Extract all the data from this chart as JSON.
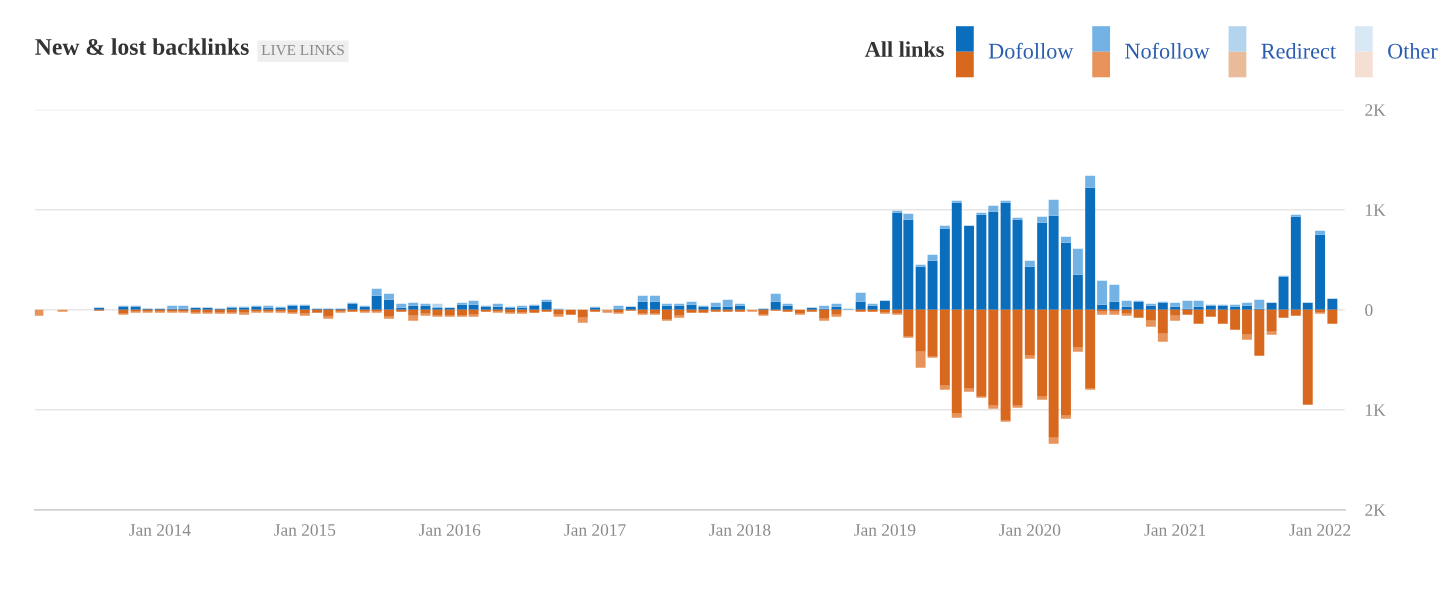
{
  "chart_data": {
    "type": "bar",
    "stacked": true,
    "title": "New & lost backlinks",
    "subtitle": "LIVE LINKS",
    "legend_title": "All links",
    "legend": "top right",
    "grid": "y",
    "x": [
      "2013-03",
      "2013-04",
      "2013-05",
      "2013-06",
      "2013-07",
      "2013-08",
      "2013-09",
      "2013-10",
      "2013-11",
      "2013-12",
      "2014-01",
      "2014-02",
      "2014-03",
      "2014-04",
      "2014-05",
      "2014-06",
      "2014-07",
      "2014-08",
      "2014-09",
      "2014-10",
      "2014-11",
      "2014-12",
      "2015-01",
      "2015-02",
      "2015-03",
      "2015-04",
      "2015-05",
      "2015-06",
      "2015-07",
      "2015-08",
      "2015-09",
      "2015-10",
      "2015-11",
      "2015-12",
      "2016-01",
      "2016-02",
      "2016-03",
      "2016-04",
      "2016-05",
      "2016-06",
      "2016-07",
      "2016-08",
      "2016-09",
      "2016-10",
      "2016-11",
      "2016-12",
      "2017-01",
      "2017-02",
      "2017-03",
      "2017-04",
      "2017-05",
      "2017-06",
      "2017-07",
      "2017-08",
      "2017-09",
      "2017-10",
      "2017-11",
      "2017-12",
      "2018-01",
      "2018-02",
      "2018-03",
      "2018-04",
      "2018-05",
      "2018-06",
      "2018-07",
      "2018-08",
      "2018-09",
      "2018-10",
      "2018-11",
      "2018-12",
      "2019-01",
      "2019-02",
      "2019-03",
      "2019-04",
      "2019-05",
      "2019-06",
      "2019-07",
      "2019-08",
      "2019-09",
      "2019-10",
      "2019-11",
      "2019-12",
      "2020-01",
      "2020-02",
      "2020-03",
      "2020-04",
      "2020-05",
      "2020-06",
      "2020-07",
      "2020-08",
      "2020-09",
      "2020-10",
      "2020-11",
      "2020-12",
      "2021-01",
      "2021-02",
      "2021-03",
      "2021-04",
      "2021-05",
      "2021-06",
      "2021-07",
      "2021-08",
      "2021-09",
      "2021-10",
      "2021-11",
      "2021-12",
      "2022-01",
      "2022-02"
    ],
    "xlim": [
      "2013-02-20",
      "2022-03-05"
    ],
    "xticks": [
      {
        "value": "2014-01",
        "label": "Jan 2014"
      },
      {
        "value": "2015-01",
        "label": "Jan 2015"
      },
      {
        "value": "2016-01",
        "label": "Jan 2016"
      },
      {
        "value": "2017-01",
        "label": "Jan 2017"
      },
      {
        "value": "2018-01",
        "label": "Jan 2018"
      },
      {
        "value": "2019-01",
        "label": "Jan 2019"
      },
      {
        "value": "2020-01",
        "label": "Jan 2020"
      },
      {
        "value": "2021-01",
        "label": "Jan 2021"
      },
      {
        "value": "2022-01",
        "label": "Jan 2022"
      }
    ],
    "ylim": [
      -2000,
      2000
    ],
    "yticks": [
      {
        "value": 2000,
        "label": "2K"
      },
      {
        "value": 1000,
        "label": "1K"
      },
      0,
      {
        "value": -1000,
        "label": "1K"
      },
      {
        "value": -2000,
        "label": "2K"
      }
    ],
    "series": [
      {
        "name": "Dofollow",
        "color": "#0a6ebd",
        "values": [
          null,
          null,
          null,
          null,
          null,
          20,
          null,
          30,
          30,
          10,
          10,
          10,
          10,
          20,
          20,
          10,
          20,
          20,
          30,
          20,
          20,
          40,
          40,
          10,
          10,
          10,
          60,
          30,
          140,
          100,
          20,
          40,
          40,
          20,
          20,
          50,
          50,
          30,
          30,
          20,
          20,
          40,
          80,
          null,
          null,
          null,
          20,
          null,
          10,
          30,
          80,
          80,
          40,
          40,
          50,
          30,
          30,
          30,
          40,
          null,
          10,
          80,
          40,
          null,
          20,
          10,
          30,
          null,
          80,
          40,
          90,
          970,
          900,
          430,
          490,
          810,
          1070,
          840,
          950,
          980,
          1070,
          900,
          430,
          870,
          940,
          670,
          350,
          1220,
          50,
          80,
          30,
          80,
          40,
          70,
          30,
          10,
          30,
          40,
          40,
          30,
          40,
          10,
          70,
          330,
          930,
          70,
          750,
          110
        ]
      },
      {
        "name": "Nofollow",
        "color": "#72b2e4",
        "values": [
          null,
          null,
          null,
          null,
          null,
          null,
          null,
          10,
          10,
          null,
          null,
          30,
          30,
          null,
          null,
          null,
          10,
          10,
          10,
          20,
          10,
          10,
          10,
          null,
          null,
          null,
          10,
          10,
          70,
          60,
          40,
          30,
          20,
          10,
          null,
          20,
          40,
          10,
          30,
          10,
          20,
          10,
          20,
          10,
          null,
          null,
          10,
          null,
          30,
          null,
          60,
          60,
          20,
          20,
          30,
          10,
          40,
          70,
          20,
          null,
          null,
          80,
          20,
          null,
          null,
          30,
          30,
          10,
          90,
          20,
          null,
          20,
          60,
          20,
          60,
          30,
          20,
          null,
          20,
          60,
          20,
          20,
          60,
          60,
          160,
          60,
          260,
          120,
          240,
          170,
          60,
          10,
          20,
          10,
          40,
          80,
          60,
          10,
          10,
          20,
          30,
          90,
          null,
          10,
          20,
          null,
          40,
          null
        ]
      },
      {
        "name": "Redirect",
        "color": "#b3d4ee",
        "values": [
          null,
          null,
          null,
          null,
          null,
          null,
          null,
          null,
          null,
          null,
          null,
          null,
          null,
          null,
          null,
          null,
          null,
          null,
          null,
          null,
          null,
          null,
          null,
          null,
          null,
          null,
          null,
          null,
          null,
          null,
          null,
          null,
          null,
          30,
          null,
          null,
          null,
          null,
          null,
          null,
          null,
          null,
          null,
          null,
          null,
          null,
          null,
          null,
          null,
          null,
          null,
          null,
          null,
          null,
          null,
          null,
          null,
          null,
          null,
          null,
          null,
          null,
          null,
          null,
          null,
          null,
          null,
          null,
          null,
          null,
          null,
          null,
          null,
          null,
          null,
          null,
          null,
          null,
          null,
          null,
          null,
          null,
          null,
          null,
          null,
          null,
          null,
          null,
          null,
          null,
          null,
          null,
          null,
          null,
          null,
          null,
          null,
          null,
          null,
          null,
          null,
          null,
          null,
          null,
          null,
          null,
          null,
          null
        ]
      },
      {
        "name": "Other",
        "color": "#d9e8f5",
        "values": [
          null,
          null,
          null,
          null,
          null,
          null,
          null,
          null,
          null,
          null,
          null,
          null,
          null,
          null,
          null,
          null,
          null,
          null,
          null,
          null,
          null,
          null,
          null,
          null,
          null,
          null,
          null,
          null,
          null,
          null,
          null,
          null,
          null,
          null,
          null,
          null,
          null,
          null,
          null,
          null,
          null,
          null,
          null,
          null,
          null,
          null,
          null,
          null,
          null,
          null,
          null,
          null,
          null,
          null,
          null,
          null,
          null,
          null,
          null,
          null,
          null,
          null,
          null,
          null,
          null,
          null,
          null,
          null,
          null,
          null,
          null,
          null,
          null,
          null,
          null,
          null,
          null,
          null,
          null,
          null,
          null,
          null,
          null,
          null,
          null,
          null,
          null,
          null,
          null,
          null,
          null,
          null,
          null,
          null,
          null,
          null,
          null,
          null,
          null,
          null,
          null,
          null,
          null,
          null,
          null,
          null,
          null,
          null
        ]
      },
      {
        "color": "#d9681f",
        "values": [
          null,
          null,
          null,
          null,
          null,
          -10,
          null,
          -40,
          -20,
          -20,
          -20,
          -20,
          -20,
          -30,
          -30,
          -30,
          -30,
          -30,
          -20,
          -20,
          -20,
          -30,
          -40,
          -30,
          -70,
          -20,
          -20,
          -20,
          -20,
          -70,
          -20,
          -60,
          -40,
          -60,
          -60,
          -60,
          -50,
          -20,
          -20,
          -30,
          -30,
          -30,
          -20,
          -50,
          -50,
          -80,
          -20,
          null,
          -30,
          -10,
          -40,
          -40,
          -100,
          -60,
          -30,
          -30,
          -20,
          -20,
          -20,
          null,
          -50,
          -10,
          -20,
          -40,
          -20,
          -90,
          -50,
          null,
          -20,
          -20,
          -30,
          -40,
          -270,
          -420,
          -470,
          -760,
          -1040,
          -790,
          -870,
          -960,
          -1110,
          -960,
          -460,
          -870,
          -1280,
          -1060,
          -380,
          -790,
          -20,
          -20,
          -40,
          -80,
          -110,
          -240,
          -60,
          -50,
          -140,
          -70,
          -140,
          -200,
          -250,
          -460,
          -220,
          -80,
          -60,
          -950,
          -30,
          -140
        ]
      },
      {
        "color": "#e8935a",
        "values": [
          -60,
          null,
          -20,
          null,
          null,
          null,
          null,
          -10,
          -10,
          -10,
          -10,
          -10,
          -10,
          -10,
          -10,
          -10,
          -10,
          -20,
          -10,
          -10,
          -10,
          -10,
          -20,
          null,
          -20,
          -10,
          null,
          -10,
          -10,
          -20,
          null,
          -50,
          -20,
          -10,
          -10,
          -10,
          -20,
          null,
          -10,
          -10,
          -10,
          null,
          null,
          -20,
          null,
          -50,
          null,
          -30,
          -10,
          null,
          -10,
          -10,
          -10,
          -20,
          null,
          null,
          null,
          null,
          null,
          -20,
          -10,
          null,
          null,
          -10,
          null,
          -20,
          -20,
          null,
          null,
          null,
          -10,
          -10,
          -10,
          -160,
          -10,
          -40,
          -40,
          -30,
          -10,
          -30,
          -10,
          -20,
          -30,
          -30,
          -60,
          -30,
          -40,
          -10,
          -30,
          -30,
          -20,
          null,
          -60,
          -80,
          -50,
          null,
          null,
          null,
          null,
          null,
          -50,
          null,
          -30,
          null,
          null,
          null,
          -10,
          null
        ]
      },
      {
        "color": "#e9bb9b",
        "values": [
          null,
          null,
          null,
          null,
          null,
          null,
          null,
          null,
          null,
          null,
          null,
          null,
          null,
          null,
          null,
          null,
          null,
          null,
          null,
          null,
          null,
          null,
          null,
          null,
          null,
          null,
          null,
          null,
          null,
          null,
          null,
          null,
          null,
          null,
          null,
          null,
          null,
          null,
          null,
          null,
          null,
          null,
          null,
          null,
          null,
          null,
          null,
          null,
          null,
          null,
          null,
          null,
          null,
          null,
          null,
          null,
          null,
          null,
          null,
          null,
          null,
          null,
          null,
          null,
          null,
          null,
          null,
          null,
          null,
          null,
          null,
          null,
          null,
          null,
          null,
          null,
          null,
          null,
          null,
          null,
          null,
          null,
          null,
          null,
          null,
          null,
          null,
          null,
          null,
          null,
          null,
          null,
          null,
          null,
          null,
          null,
          null,
          null,
          null,
          null,
          null,
          null,
          null,
          null,
          null,
          null,
          null,
          null
        ]
      },
      {
        "color": "#f4dfd2",
        "values": [
          null,
          null,
          null,
          null,
          null,
          null,
          null,
          null,
          null,
          null,
          null,
          null,
          null,
          null,
          null,
          null,
          null,
          null,
          null,
          null,
          null,
          null,
          null,
          null,
          null,
          null,
          null,
          null,
          null,
          null,
          null,
          null,
          null,
          null,
          null,
          null,
          null,
          null,
          null,
          null,
          null,
          null,
          null,
          null,
          null,
          null,
          null,
          null,
          null,
          null,
          null,
          null,
          null,
          null,
          null,
          null,
          null,
          null,
          null,
          null,
          null,
          null,
          null,
          null,
          null,
          null,
          null,
          null,
          null,
          null,
          null,
          null,
          null,
          null,
          null,
          null,
          null,
          null,
          null,
          null,
          null,
          null,
          null,
          null,
          null,
          null,
          null,
          null,
          null,
          null,
          null,
          null,
          null,
          null,
          null,
          null,
          null,
          null,
          null,
          null,
          null,
          null,
          null,
          null,
          null,
          null,
          null,
          null
        ]
      }
    ]
  }
}
